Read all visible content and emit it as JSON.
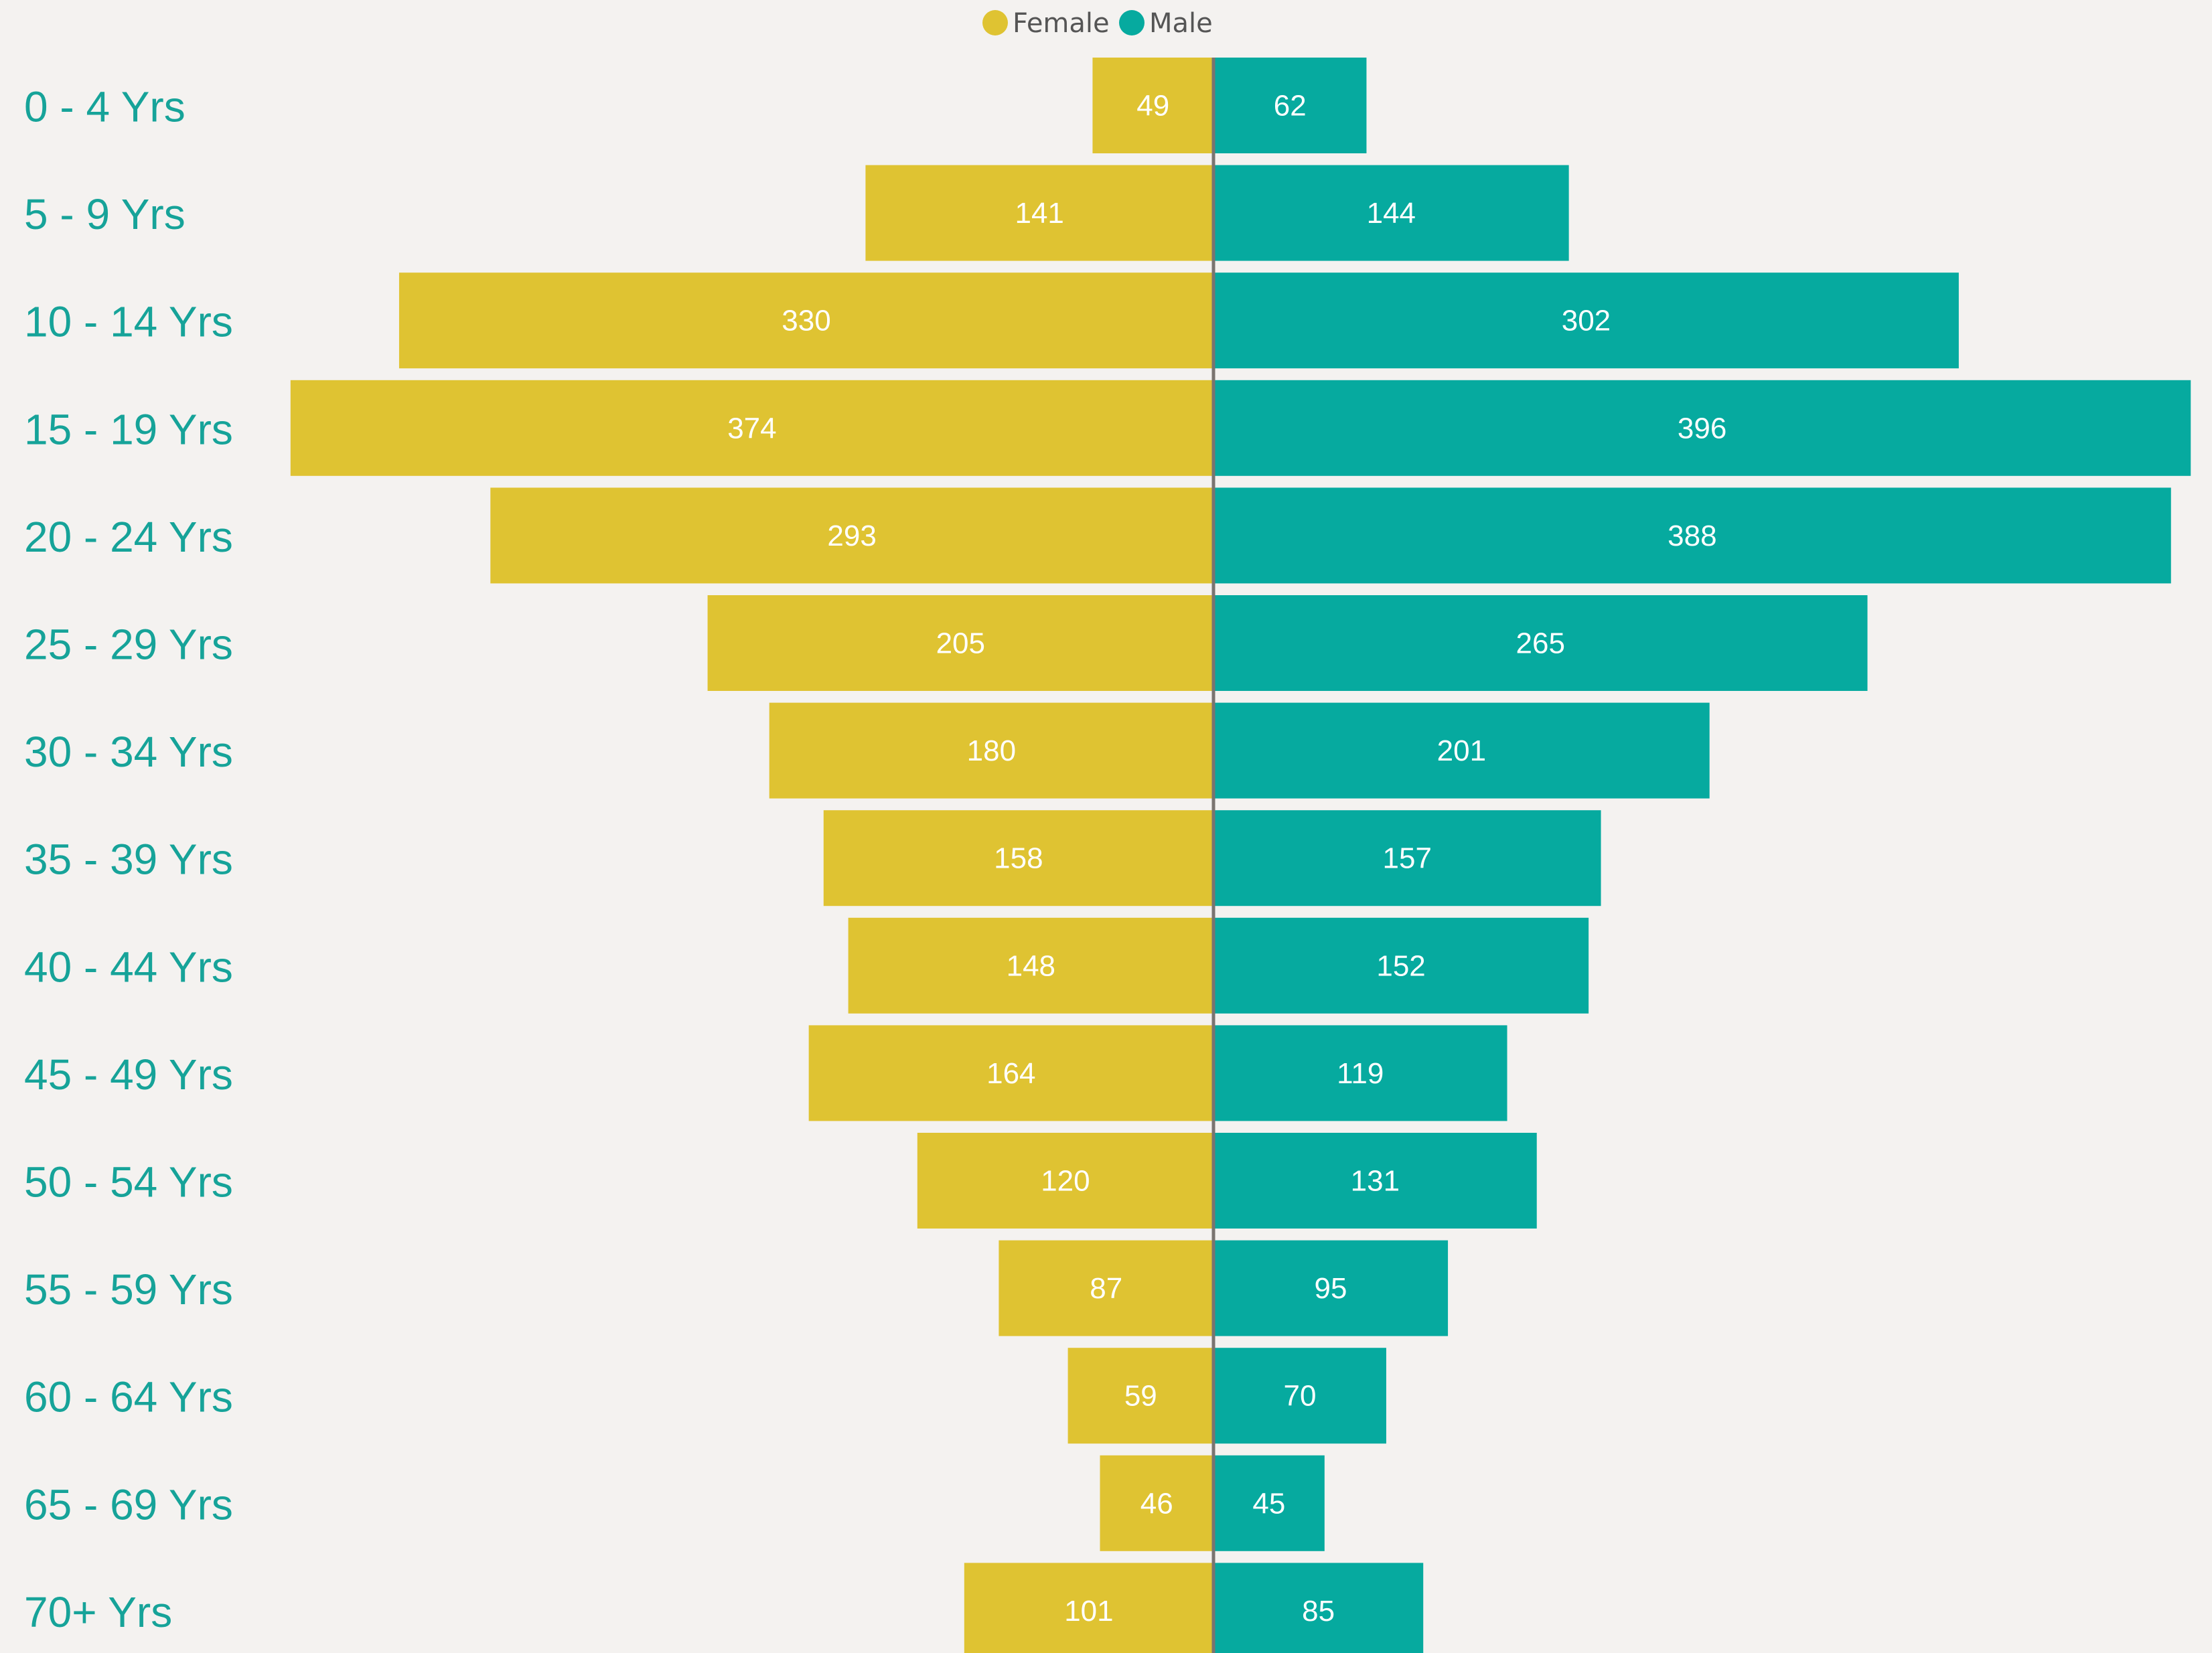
{
  "colors": {
    "female": "#dfc332",
    "male": "#06aa9f",
    "category_label": "#16a399",
    "axis_line": "#7a7470",
    "background": "#f4f2f0"
  },
  "chart_data": {
    "type": "bar",
    "orientation": "horizontal",
    "layout": "population-pyramid",
    "legend": {
      "position": "top-center",
      "entries": [
        "Female",
        "Male"
      ]
    },
    "categories": [
      "0 - 4 Yrs",
      "5 - 9 Yrs",
      "10 - 14 Yrs",
      "15 - 19 Yrs",
      "20 - 24 Yrs",
      "25 - 29 Yrs",
      "30 - 34 Yrs",
      "35 - 39 Yrs",
      "40 - 44 Yrs",
      "45 - 49 Yrs",
      "50 - 54 Yrs",
      "55 - 59 Yrs",
      "60 - 64 Yrs",
      "65 - 69 Yrs",
      "70+ Yrs"
    ],
    "series": [
      {
        "name": "Female",
        "side": "left",
        "values": [
          49,
          141,
          330,
          374,
          293,
          205,
          180,
          158,
          148,
          164,
          120,
          87,
          59,
          46,
          101
        ]
      },
      {
        "name": "Male",
        "side": "right",
        "values": [
          62,
          144,
          302,
          396,
          388,
          265,
          201,
          157,
          152,
          119,
          131,
          95,
          70,
          45,
          85
        ]
      }
    ],
    "xlim": [
      0,
      400
    ],
    "grid": false,
    "data_labels": true
  }
}
